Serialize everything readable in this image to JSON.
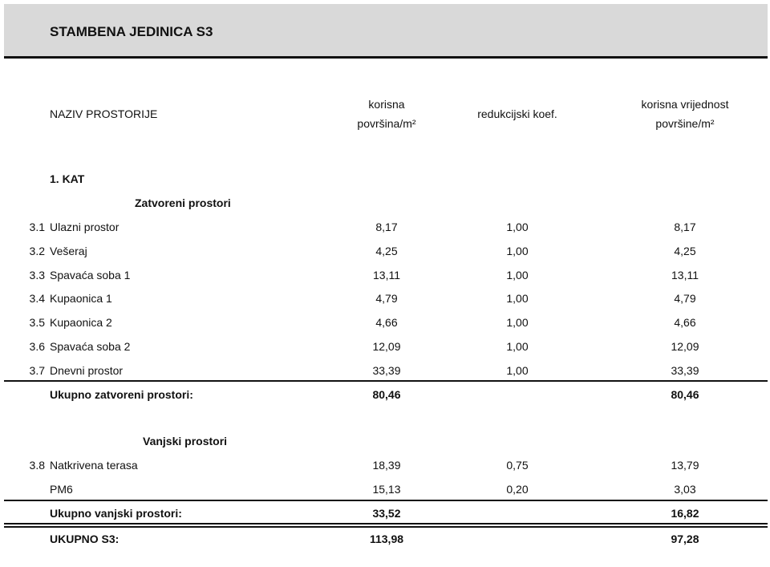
{
  "title": "STAMBENA JEDINICA S3",
  "headers": {
    "name": "NAZIV PROSTORIJE",
    "area_l1": "korisna",
    "area_l2": "površina/m²",
    "coef": "redukcijski koef.",
    "value_l1": "korisna vrijednost",
    "value_l2": "površine/m²"
  },
  "floor": "1. KAT",
  "closed": {
    "label": "Zatvoreni prostori",
    "rows": [
      {
        "num": "3.1",
        "name": "Ulazni prostor",
        "area": "8,17",
        "coef": "1,00",
        "value": "8,17"
      },
      {
        "num": "3.2",
        "name": "Vešeraj",
        "area": "4,25",
        "coef": "1,00",
        "value": "4,25"
      },
      {
        "num": "3.3",
        "name": "Spavaća soba 1",
        "area": "13,11",
        "coef": "1,00",
        "value": "13,11"
      },
      {
        "num": "3.4",
        "name": "Kupaonica 1",
        "area": "4,79",
        "coef": "1,00",
        "value": "4,79"
      },
      {
        "num": "3.5",
        "name": "Kupaonica 2",
        "area": "4,66",
        "coef": "1,00",
        "value": "4,66"
      },
      {
        "num": "3.6",
        "name": "Spavaća soba 2",
        "area": "12,09",
        "coef": "1,00",
        "value": "12,09"
      },
      {
        "num": "3.7",
        "name": "Dnevni prostor",
        "area": "33,39",
        "coef": "1,00",
        "value": "33,39"
      }
    ],
    "total": {
      "label": "Ukupno zatvoreni prostori:",
      "area": "80,46",
      "value": "80,46"
    }
  },
  "open": {
    "label": "Vanjski prostori",
    "rows": [
      {
        "num": "3.8",
        "name": "Natkrivena terasa",
        "area": "18,39",
        "coef": "0,75",
        "value": "13,79"
      },
      {
        "num": "",
        "name": "PM6",
        "area": "15,13",
        "coef": "0,20",
        "value": "3,03"
      }
    ],
    "total": {
      "label": "Ukupno vanjski prostori:",
      "area": "33,52",
      "value": "16,82"
    }
  },
  "grand_total": {
    "label": "UKUPNO S3:",
    "area": "113,98",
    "value": "97,28"
  }
}
